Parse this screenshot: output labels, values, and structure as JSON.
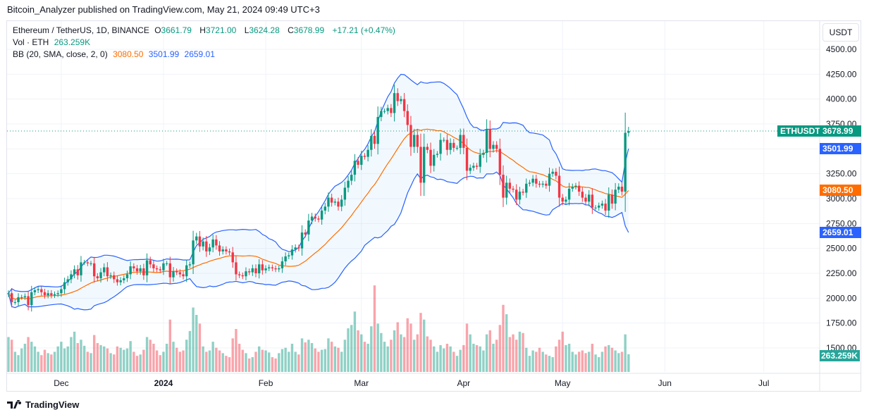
{
  "publish_line": "Bitcoin_Analyzer published on TradingView.com, May 21, 2024 09:49 UTC+3",
  "legend": {
    "symbol": "Ethereum / TetherUS, 1D, BINANCE",
    "o_label": "O",
    "o": "3661.79",
    "h_label": "H",
    "h": "3721.00",
    "l_label": "L",
    "l": "3624.28",
    "c_label": "C",
    "c": "3678.99",
    "change": "+17.21 (+0.47%)",
    "vol_label": "Vol · ETH",
    "vol": "263.259K",
    "bb_label": "BB (20, SMA, close, 2, 0)",
    "bb_basis": "3080.50",
    "bb_upper": "3501.99",
    "bb_lower": "2659.01"
  },
  "price_axis": {
    "currency_button": "USDT",
    "ticks": [
      "4500.00",
      "4250.00",
      "4000.00",
      "3750.00",
      "3250.00",
      "3000.00",
      "2750.00",
      "2500.00",
      "2250.00",
      "2000.00",
      "1750.00",
      "1500.00"
    ],
    "symbol_tag": "ETHUSDT",
    "last_price_tag": "3678.99",
    "upper_tag": "3501.99",
    "basis_tag": "3080.50",
    "lower_tag": "2659.01",
    "volume_tag": "263.259K"
  },
  "footer": {
    "logo_text": "TradingView"
  },
  "colors": {
    "up": "#089981",
    "down": "#f23645",
    "bb_band": "#2962ff",
    "bb_basis": "#ff6d00",
    "band_fill": "#2196f3"
  },
  "chart_data": {
    "type": "candlestick",
    "symbol": "ETHUSDT",
    "interval": "1D",
    "start_date": "2023-11-15",
    "end_date": "2024-05-21",
    "ylim": [
      1350,
      4650
    ],
    "y_ticks": [
      1500,
      1750,
      2000,
      2250,
      2500,
      2750,
      3000,
      3250,
      3500,
      3750,
      4000,
      4250,
      4500
    ],
    "x_ticks": [
      {
        "label": "Dec",
        "date": "2023-12-01"
      },
      {
        "label": "2024",
        "date": "2024-01-01"
      },
      {
        "label": "Feb",
        "date": "2024-02-01"
      },
      {
        "label": "Mar",
        "date": "2024-03-01"
      },
      {
        "label": "Apr",
        "date": "2024-04-01"
      },
      {
        "label": "May",
        "date": "2024-05-01"
      },
      {
        "label": "Jun",
        "date": "2024-06-01"
      },
      {
        "label": "Jul",
        "date": "2024-07-01"
      }
    ],
    "first_open": 2040,
    "close": [
      2050,
      1960,
      1960,
      2010,
      2010,
      2020,
      1930,
      2060,
      2080,
      2090,
      2060,
      2030,
      2050,
      2030,
      2040,
      2050,
      2090,
      2160,
      2190,
      2240,
      2290,
      2230,
      2360,
      2360,
      2350,
      2350,
      2220,
      2200,
      2260,
      2310,
      2220,
      2230,
      2190,
      2160,
      2180,
      2200,
      2240,
      2320,
      2300,
      2270,
      2300,
      2230,
      2380,
      2340,
      2300,
      2290,
      2280,
      2350,
      2350,
      2210,
      2270,
      2260,
      2240,
      2220,
      2330,
      2340,
      2580,
      2620,
      2520,
      2570,
      2470,
      2510,
      2590,
      2530,
      2470,
      2490,
      2470,
      2460,
      2360,
      2240,
      2230,
      2220,
      2270,
      2260,
      2300,
      2250,
      2340,
      2280,
      2300,
      2310,
      2300,
      2290,
      2300,
      2370,
      2420,
      2430,
      2490,
      2510,
      2500,
      2660,
      2640,
      2780,
      2820,
      2800,
      2790,
      2880,
      2920,
      3010,
      2960,
      2970,
      2920,
      2990,
      3110,
      3180,
      3240,
      3380,
      3340,
      3430,
      3420,
      3490,
      3630,
      3550,
      3820,
      3880,
      3880,
      3910,
      3860,
      4060,
      3980,
      4000,
      3880,
      3740,
      3520,
      3640,
      3520,
      3160,
      3520,
      3490,
      3330,
      3440,
      3450,
      3590,
      3590,
      3490,
      3560,
      3510,
      3510,
      3640,
      3510,
      3280,
      3310,
      3330,
      3320,
      3440,
      3460,
      3700,
      3500,
      3540,
      3500,
      3240,
      3010,
      3160,
      3100,
      3090,
      2990,
      3070,
      3060,
      3150,
      3160,
      3200,
      3150,
      3140,
      3150,
      3130,
      3250,
      3270,
      3230,
      3010,
      2970,
      2990,
      3100,
      3120,
      3130,
      3070,
      3010,
      2970,
      3040,
      2910,
      2910,
      2930,
      2950,
      2880,
      3040,
      2950,
      3090,
      3120,
      3070,
      3661.79,
      3678.99
    ],
    "last_candle": {
      "open": 3661.79,
      "high": 3721.0,
      "low": 3624.28,
      "close": 3678.99
    },
    "volume_k": [
      520,
      480,
      300,
      250,
      350,
      420,
      520,
      450,
      380,
      300,
      250,
      330,
      280,
      260,
      300,
      380,
      450,
      350,
      380,
      520,
      600,
      430,
      480,
      390,
      300,
      280,
      550,
      430,
      400,
      380,
      350,
      280,
      260,
      380,
      360,
      330,
      350,
      460,
      300,
      240,
      260,
      330,
      520,
      480,
      420,
      320,
      250,
      300,
      420,
      780,
      450,
      360,
      300,
      320,
      480,
      610,
      960,
      850,
      720,
      380,
      300,
      320,
      450,
      360,
      320,
      280,
      240,
      220,
      500,
      640,
      420,
      330,
      280,
      200,
      220,
      300,
      380,
      330,
      320,
      290,
      220,
      200,
      280,
      340,
      360,
      300,
      420,
      300,
      260,
      500,
      440,
      480,
      430,
      350,
      300,
      330,
      340,
      500,
      450,
      380,
      360,
      300,
      480,
      650,
      700,
      900,
      620,
      560,
      450,
      420,
      680,
      1290,
      720,
      580,
      450,
      380,
      480,
      620,
      740,
      560,
      520,
      800,
      720,
      480,
      560,
      880,
      780,
      530,
      480,
      380,
      300,
      400,
      350,
      420,
      380,
      300,
      240,
      330,
      400,
      720,
      560,
      420,
      400,
      380,
      320,
      560,
      620,
      420,
      480,
      700,
      1000,
      860,
      520,
      560,
      480,
      600,
      580,
      360,
      240,
      320,
      300,
      360,
      300,
      260,
      240,
      220,
      380,
      480,
      600,
      400,
      420,
      300,
      260,
      300,
      320,
      280,
      300,
      420,
      260,
      220,
      300,
      380,
      400,
      360,
      320,
      280,
      300,
      560,
      263.259
    ],
    "indicators": [
      {
        "name": "BB",
        "length": 20,
        "ma": "SMA",
        "source": "close",
        "mult": 2,
        "last": {
          "basis": 3080.5,
          "upper": 3501.99,
          "lower": 2659.01
        }
      }
    ],
    "grid": true,
    "last_price_line": 3678.99
  }
}
